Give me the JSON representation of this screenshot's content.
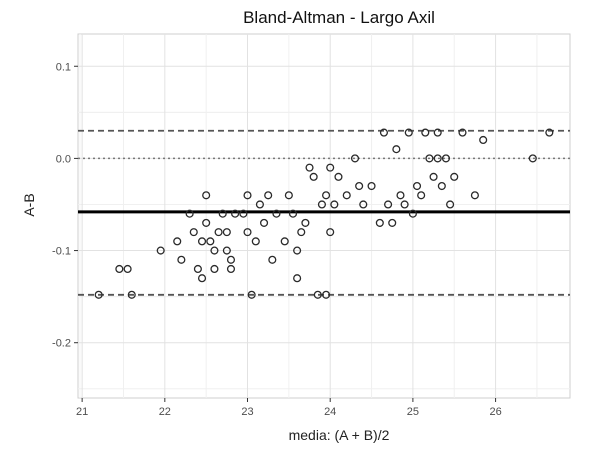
{
  "chart_data": {
    "type": "scatter",
    "title": "Bland-Altman - Largo Axil",
    "xlabel": "media: (A + B)/2",
    "ylabel": "A-B",
    "xlim": [
      20.95,
      26.9
    ],
    "ylim": [
      -0.26,
      0.135
    ],
    "x_ticks": [
      21,
      22,
      23,
      24,
      25,
      26
    ],
    "y_ticks": [
      -0.2,
      -0.1,
      0.0,
      0.1
    ],
    "y_tick_labels": [
      "-0.2",
      "-0.1",
      "0.0",
      "0.1"
    ],
    "grid": true,
    "legend": "none",
    "reference_lines": [
      {
        "name": "mean difference",
        "y": -0.058,
        "style": "solid"
      },
      {
        "name": "upper limit of agreement",
        "y": 0.03,
        "style": "dashed"
      },
      {
        "name": "lower limit of agreement",
        "y": -0.148,
        "style": "dashed"
      },
      {
        "name": "zero line",
        "y": 0.0,
        "style": "dotted"
      }
    ],
    "points": [
      [
        21.2,
        -0.148
      ],
      [
        21.45,
        -0.12
      ],
      [
        21.55,
        -0.12
      ],
      [
        21.6,
        -0.148
      ],
      [
        21.95,
        -0.1
      ],
      [
        22.15,
        -0.09
      ],
      [
        22.2,
        -0.11
      ],
      [
        22.3,
        -0.06
      ],
      [
        22.35,
        -0.08
      ],
      [
        22.4,
        -0.12
      ],
      [
        22.45,
        -0.13
      ],
      [
        22.45,
        -0.09
      ],
      [
        22.5,
        -0.04
      ],
      [
        22.5,
        -0.07
      ],
      [
        22.55,
        -0.09
      ],
      [
        22.6,
        -0.1
      ],
      [
        22.6,
        -0.12
      ],
      [
        22.65,
        -0.08
      ],
      [
        22.7,
        -0.06
      ],
      [
        22.75,
        -0.08
      ],
      [
        22.75,
        -0.1
      ],
      [
        22.8,
        -0.11
      ],
      [
        22.8,
        -0.12
      ],
      [
        22.85,
        -0.06
      ],
      [
        22.95,
        -0.06
      ],
      [
        23.0,
        -0.04
      ],
      [
        23.0,
        -0.08
      ],
      [
        23.05,
        -0.148
      ],
      [
        23.1,
        -0.09
      ],
      [
        23.15,
        -0.05
      ],
      [
        23.2,
        -0.07
      ],
      [
        23.25,
        -0.04
      ],
      [
        23.3,
        -0.11
      ],
      [
        23.35,
        -0.06
      ],
      [
        23.45,
        -0.09
      ],
      [
        23.5,
        -0.04
      ],
      [
        23.55,
        -0.06
      ],
      [
        23.6,
        -0.13
      ],
      [
        23.6,
        -0.1
      ],
      [
        23.65,
        -0.08
      ],
      [
        23.7,
        -0.07
      ],
      [
        23.75,
        -0.01
      ],
      [
        23.8,
        -0.02
      ],
      [
        23.85,
        -0.148
      ],
      [
        23.9,
        -0.05
      ],
      [
        23.95,
        -0.148
      ],
      [
        23.95,
        -0.04
      ],
      [
        24.0,
        -0.08
      ],
      [
        24.0,
        -0.01
      ],
      [
        24.05,
        -0.05
      ],
      [
        24.1,
        -0.02
      ],
      [
        24.2,
        -0.04
      ],
      [
        24.3,
        0.0
      ],
      [
        24.35,
        -0.03
      ],
      [
        24.4,
        -0.05
      ],
      [
        24.5,
        -0.03
      ],
      [
        24.6,
        -0.07
      ],
      [
        24.65,
        0.028
      ],
      [
        24.7,
        -0.05
      ],
      [
        24.75,
        -0.07
      ],
      [
        24.8,
        0.01
      ],
      [
        24.85,
        -0.04
      ],
      [
        24.9,
        -0.05
      ],
      [
        24.95,
        0.028
      ],
      [
        25.0,
        -0.06
      ],
      [
        25.05,
        -0.03
      ],
      [
        25.1,
        -0.04
      ],
      [
        25.15,
        0.028
      ],
      [
        25.2,
        0.0
      ],
      [
        25.25,
        -0.02
      ],
      [
        25.3,
        0.028
      ],
      [
        25.3,
        0.0
      ],
      [
        25.35,
        -0.03
      ],
      [
        25.4,
        0.0
      ],
      [
        25.45,
        -0.05
      ],
      [
        25.5,
        -0.02
      ],
      [
        25.6,
        0.028
      ],
      [
        25.75,
        -0.04
      ],
      [
        25.85,
        0.02
      ],
      [
        26.45,
        0.0
      ],
      [
        26.65,
        0.028
      ]
    ]
  }
}
